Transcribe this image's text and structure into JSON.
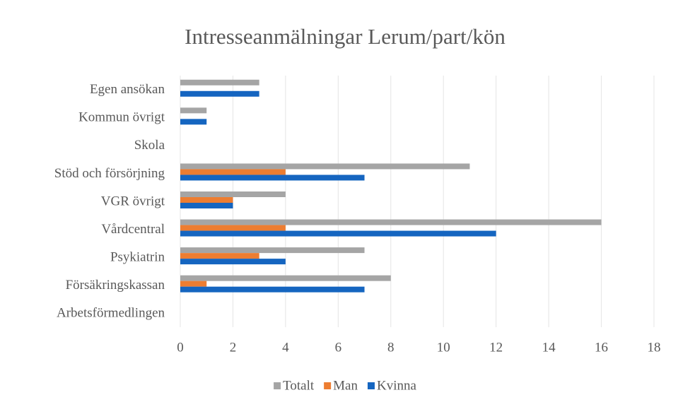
{
  "chart_data": {
    "type": "bar",
    "orientation": "horizontal",
    "title": "Intresseanmälningar Lerum/part/kön",
    "categories": [
      "Egen ansökan",
      "Kommun övrigt",
      "Skola",
      "Stöd och försörjning",
      "VGR övrigt",
      "Vårdcentral",
      "Psykiatrin",
      "Försäkringskassan",
      "Arbetsförmedlingen"
    ],
    "series": [
      {
        "name": "Totalt",
        "color": "#a5a5a5",
        "values": [
          3,
          1,
          0,
          11,
          4,
          16,
          7,
          8,
          0
        ]
      },
      {
        "name": "Man",
        "color": "#ed7d31",
        "values": [
          0,
          0,
          0,
          4,
          2,
          4,
          3,
          1,
          0
        ]
      },
      {
        "name": "Kvinna",
        "color": "#1565c0",
        "values": [
          3,
          1,
          0,
          7,
          2,
          12,
          4,
          7,
          0
        ]
      }
    ],
    "xlim": [
      0,
      18
    ],
    "xticks": [
      0,
      2,
      4,
      6,
      8,
      10,
      12,
      14,
      16,
      18
    ],
    "grid": true,
    "legend": "bottom"
  }
}
